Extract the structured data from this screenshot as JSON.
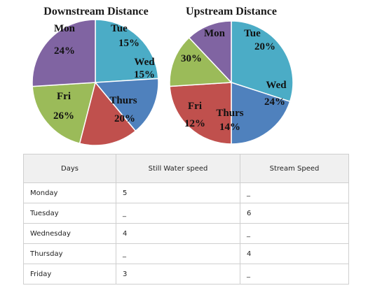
{
  "chart_data": [
    {
      "type": "pie",
      "title": "Downstream Distance",
      "slices": [
        {
          "label": "Mon",
          "pct_label": "24%",
          "value": 24,
          "color": "#4bacc6"
        },
        {
          "label": "Tue",
          "pct_label": "15%",
          "value": 15,
          "color": "#4f81bd"
        },
        {
          "label": "Wed",
          "pct_label": "15%",
          "value": 15,
          "color": "#c0504d"
        },
        {
          "label": "Thurs",
          "pct_label": "20%",
          "value": 20,
          "color": "#9bbb59"
        },
        {
          "label": "Fri",
          "pct_label": "26%",
          "value": 26,
          "color": "#8064a2"
        }
      ]
    },
    {
      "type": "pie",
      "title": "Upstream Distance",
      "slices": [
        {
          "label": "Mon",
          "pct_label": "30%",
          "value": 30,
          "color": "#4bacc6"
        },
        {
          "label": "Tue",
          "pct_label": "20%",
          "value": 20,
          "color": "#4f81bd"
        },
        {
          "label": "Wed",
          "pct_label": "24%",
          "value": 24,
          "color": "#c0504d"
        },
        {
          "label": "Thurs",
          "pct_label": "14%",
          "value": 14,
          "color": "#9bbb59"
        },
        {
          "label": "Fri",
          "pct_label": "12%",
          "value": 12,
          "color": "#8064a2"
        }
      ]
    }
  ],
  "table": {
    "headers": [
      "Days",
      "Still Water speed",
      "Stream Speed"
    ],
    "rows": [
      [
        "Monday",
        "5",
        "_"
      ],
      [
        "Tuesday",
        "_",
        "6"
      ],
      [
        "Wednesday",
        "4",
        "_"
      ],
      [
        "Thursday",
        "_",
        "4"
      ],
      [
        "Friday",
        "3",
        "_"
      ]
    ]
  }
}
